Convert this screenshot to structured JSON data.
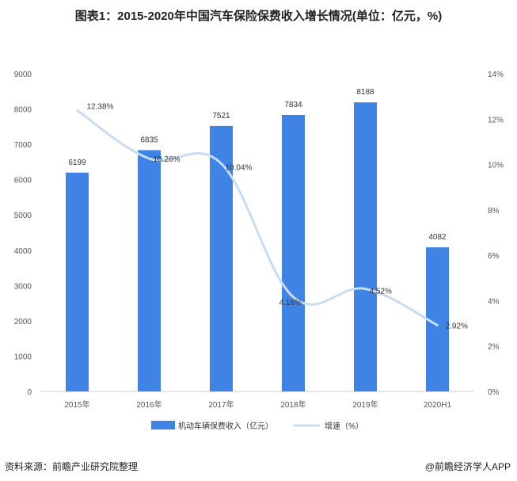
{
  "page": {
    "title": "图表1：2015-2020年中国汽车保险保费收入增长情况(单位：亿元，%)",
    "source": "资料来源：前瞻产业研究院整理",
    "brand": "@前瞻经济学人APP"
  },
  "chart_data": {
    "type": "bar",
    "title": "图表1：2015-2020年中国汽车保险保费收入增长情况(单位：亿元，%)",
    "categories": [
      "2015年",
      "2016年",
      "2017年",
      "2018年",
      "2019年",
      "2020H1"
    ],
    "series": [
      {
        "name": "机动车辆保费收入（亿元）",
        "type": "bar",
        "axis": "left",
        "values": [
          6199,
          6835,
          7521,
          7834,
          8188,
          4082
        ],
        "color": "#3f84e5"
      },
      {
        "name": "增速（%）",
        "type": "line",
        "axis": "right",
        "values": [
          12.38,
          10.26,
          10.04,
          4.16,
          4.52,
          2.92
        ],
        "color": "#c8dcf3"
      }
    ],
    "bar_labels": [
      "6199",
      "6835",
      "7521",
      "7834",
      "8188",
      "4082"
    ],
    "line_labels": [
      "12.38%",
      "10.26%",
      "10.04%",
      "4.16%",
      "4.52%",
      "2.92%"
    ],
    "y_left": {
      "range": [
        0,
        9000
      ],
      "ticks": [
        "0",
        "1000",
        "2000",
        "3000",
        "4000",
        "5000",
        "6000",
        "7000",
        "8000",
        "9000"
      ]
    },
    "y_right": {
      "range": [
        0,
        14
      ],
      "ticks": [
        "0%",
        "2%",
        "4%",
        "6%",
        "8%",
        "10%",
        "12%",
        "14%"
      ]
    },
    "legend_position": "bottom",
    "grid": false
  }
}
